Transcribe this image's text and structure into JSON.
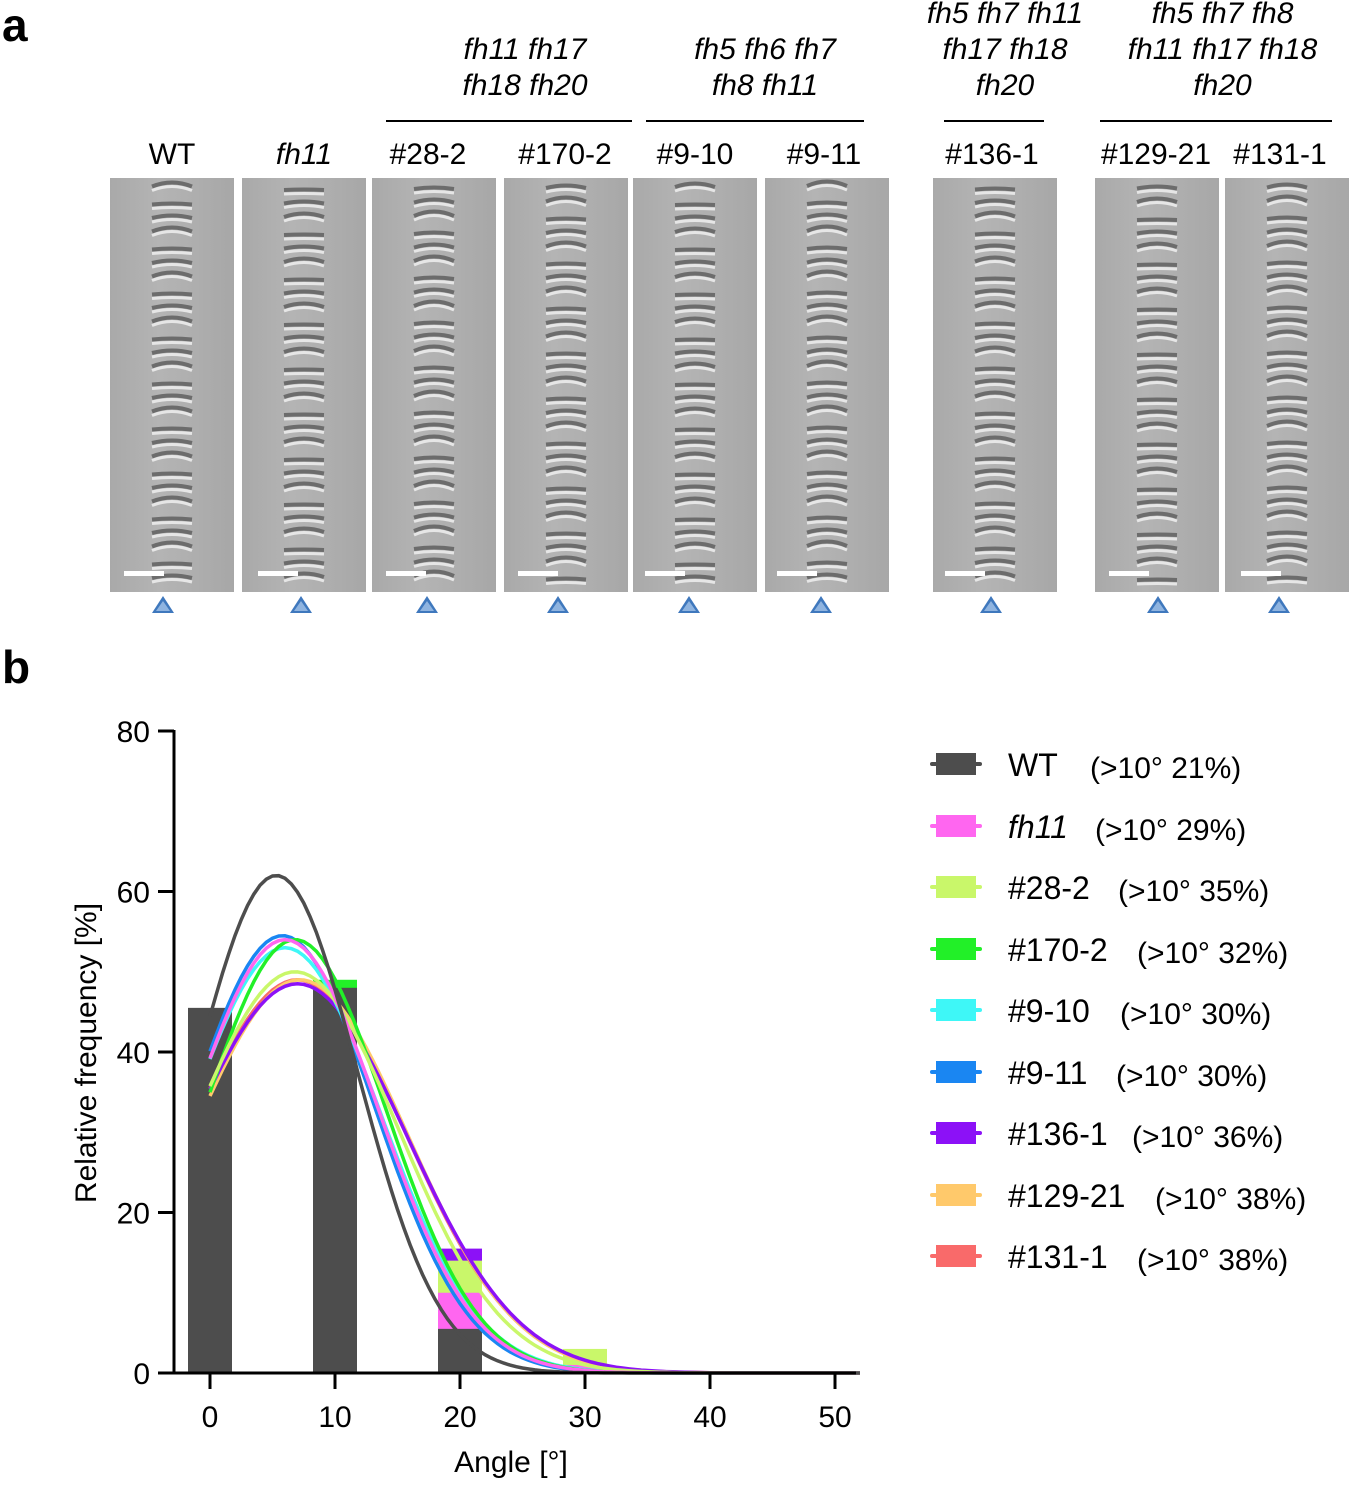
{
  "panel_a": {
    "letter": "a",
    "groups": [
      {
        "label": "fh11 fh17\nfh18 fh20"
      },
      {
        "label": "fh5 fh6 fh7\nfh8 fh11"
      },
      {
        "label": "fh5 fh7 fh11\nfh17 fh18\nfh20"
      },
      {
        "label": "fh5 fh7 fh8\nfh11 fh17 fh18\nfh20"
      }
    ],
    "columns": [
      {
        "label": "WT",
        "italic": false
      },
      {
        "label": "fh11",
        "italic": true
      },
      {
        "label": "#28-2",
        "italic": false
      },
      {
        "label": "#170-2",
        "italic": false
      },
      {
        "label": "#9-10",
        "italic": false
      },
      {
        "label": "#9-11",
        "italic": false
      },
      {
        "label": "#136-1",
        "italic": false
      },
      {
        "label": "#129-21",
        "italic": false
      },
      {
        "label": "#131-1",
        "italic": false
      }
    ]
  },
  "panel_b": {
    "letter": "b",
    "legend": [
      {
        "name": "WT",
        "pct": "(>10°   21%)",
        "color": "#4d4d4d",
        "italic": false
      },
      {
        "name": "fh11",
        "pct": "(>10°   29%)",
        "color": "#ff66f0",
        "italic": true
      },
      {
        "name": "#28-2",
        "pct": "(>10°   35%)",
        "color": "#c9f76a",
        "italic": false
      },
      {
        "name": "#170-2",
        "pct": "(>10°   32%)",
        "color": "#22f028",
        "italic": false
      },
      {
        "name": "#9-10",
        "pct": "(>10°   30%)",
        "color": "#3ef7f7",
        "italic": false
      },
      {
        "name": "#9-11",
        "pct": "(>10°   30%)",
        "color": "#1a86f2",
        "italic": false
      },
      {
        "name": "#136-1",
        "pct": "(>10°   36%)",
        "color": "#8c11f7",
        "italic": false
      },
      {
        "name": "#129-21",
        "pct": "(>10°   38%)",
        "color": "#ffc96b",
        "italic": false
      },
      {
        "name": "#131-1",
        "pct": "(>10°   38%)",
        "color": "#f96a6a",
        "italic": false
      }
    ]
  },
  "chart_data": {
    "type": "bar",
    "title": "",
    "xlabel": "Angle [°]",
    "ylabel": "Relative frequency [%]",
    "xlim": [
      -3,
      52
    ],
    "ylim": [
      0,
      80
    ],
    "xticks": [
      0,
      10,
      20,
      30,
      40,
      50
    ],
    "yticks": [
      0,
      20,
      40,
      60,
      80
    ],
    "categories": [
      0,
      10,
      20,
      30,
      40,
      50
    ],
    "series": [
      {
        "name": "WT",
        "color": "#4d4d4d",
        "values": [
          45.5,
          48,
          5.5,
          0,
          0,
          0
        ],
        "fit": {
          "amp": 62,
          "mu": 5.3,
          "sigma": 6.5
        }
      },
      {
        "name": "fh11",
        "color": "#ff66f0",
        "values": [
          43,
          47,
          10,
          1,
          0,
          0
        ],
        "fit": {
          "amp": 54,
          "mu": 6,
          "sigma": 7.5
        }
      },
      {
        "name": "#28-2",
        "color": "#c9f76a",
        "values": [
          38,
          47,
          14,
          3,
          0,
          0
        ],
        "fit": {
          "amp": 50,
          "mu": 6.8,
          "sigma": 8.3
        }
      },
      {
        "name": "#170-2",
        "color": "#22f028",
        "values": [
          36,
          49,
          12,
          1.5,
          0,
          0
        ],
        "fit": {
          "amp": 54,
          "mu": 6.8,
          "sigma": 7.3
        }
      },
      {
        "name": "#9-10",
        "color": "#3ef7f7",
        "values": [
          42,
          47,
          11,
          1.5,
          0,
          0
        ],
        "fit": {
          "amp": 53,
          "mu": 6,
          "sigma": 7.7
        }
      },
      {
        "name": "#9-11",
        "color": "#1a86f2",
        "values": [
          42,
          47,
          11,
          1.5,
          0,
          0
        ],
        "fit": {
          "amp": 54.5,
          "mu": 5.8,
          "sigma": 7.4
        }
      },
      {
        "name": "#136-1",
        "color": "#8c11f7",
        "values": [
          37,
          47,
          15.5,
          1.5,
          0,
          0
        ],
        "fit": {
          "amp": 48.5,
          "mu": 7,
          "sigma": 8.8
        }
      },
      {
        "name": "#129-21",
        "color": "#ffc96b",
        "values": [
          34,
          48,
          15,
          2,
          0,
          0
        ],
        "fit": {
          "amp": 49,
          "mu": 7.2,
          "sigma": 8.6
        }
      },
      {
        "name": "#131-1",
        "color": "#f96a6a",
        "values": [
          35,
          48,
          15,
          2,
          0,
          0
        ],
        "fit": {
          "amp": 49,
          "mu": 7,
          "sigma": 8.7
        }
      }
    ]
  }
}
